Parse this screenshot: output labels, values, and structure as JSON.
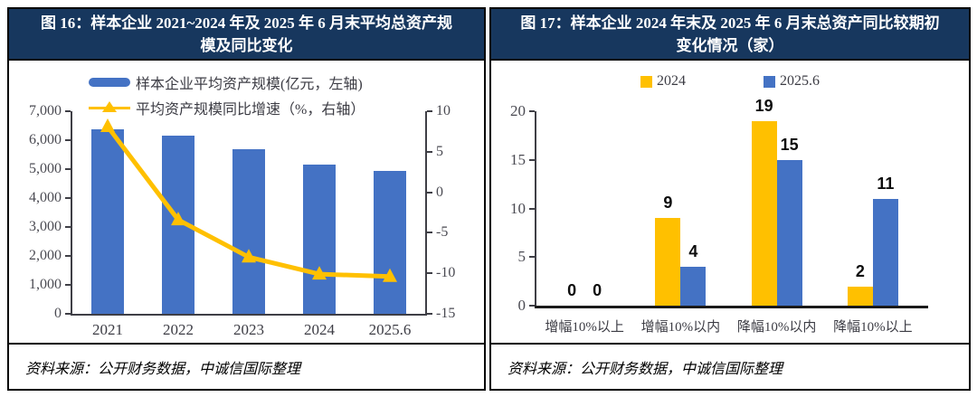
{
  "colors": {
    "title_bg": "#17375E",
    "title_text": "#FFFFFF",
    "panel_border": "#000000",
    "bar_blue": "#4472C4",
    "line_yellow": "#FFC000",
    "axis": "#3F3F46",
    "tick_text": "#4A4A52",
    "data_label_text": "#0D0D0D"
  },
  "panels": [
    {
      "title": "图 16：样本企业 2021~2024 年及 2025 年 6 月末平均总资产规模及同比变化",
      "source": "资料来源：公开财务数据，中诚信国际整理"
    },
    {
      "title": "图 17：样本企业 2024 年末及 2025 年 6 月末总资产同比较期初变化情况（家）",
      "source": "资料来源：公开财务数据，中诚信国际整理"
    }
  ],
  "chart_data": [
    {
      "type": "bar+line",
      "title": "图 16：样本企业 2021~2024 年及 2025 年 6 月末平均总资产规模及同比变化",
      "categories": [
        "2021",
        "2022",
        "2023",
        "2024",
        "2025.6"
      ],
      "series": [
        {
          "name": "样本企业平均资产规模(亿元，左轴)",
          "type": "bar",
          "axis": "left",
          "color": "#4472C4",
          "values": [
            6370,
            6160,
            5700,
            5150,
            4950
          ],
          "values_estimated_from_pixels": true
        },
        {
          "name": "平均资产规模同比增速（%，右轴）",
          "type": "line",
          "axis": "right",
          "color": "#FFC000",
          "marker": "triangle",
          "values": [
            8.1,
            -3.4,
            -8.0,
            -10.1,
            -10.4
          ],
          "values_estimated_from_pixels": true
        }
      ],
      "left_axis": {
        "min": 0,
        "max": 7000,
        "step": 1000,
        "tick_labels": [
          "0",
          "1,000",
          "2,000",
          "3,000",
          "4,000",
          "5,000",
          "6,000",
          "7,000"
        ]
      },
      "right_axis": {
        "min": -15,
        "max": 10,
        "step": 5,
        "tick_labels": [
          "-15",
          "-10",
          "-5",
          "0",
          "5",
          "10"
        ]
      },
      "legend_position": "top-left",
      "grid": false
    },
    {
      "type": "bar",
      "title": "图 17：样本企业 2024 年末及 2025 年 6 月末总资产同比较期初变化情况（家）",
      "categories": [
        "增幅10%以上",
        "增幅10%以内",
        "降幅10%以内",
        "降幅10%以上"
      ],
      "series": [
        {
          "name": "2024",
          "color": "#FFC000",
          "values": [
            0,
            9,
            19,
            2
          ]
        },
        {
          "name": "2025.6",
          "color": "#4472C4",
          "values": [
            0,
            4,
            15,
            11
          ]
        }
      ],
      "ylim": [
        0,
        20
      ],
      "ystep": 5,
      "y_tick_labels": [
        "0",
        "5",
        "10",
        "15",
        "20"
      ],
      "data_labels": true,
      "legend_position": "top-center",
      "grid": false
    }
  ]
}
